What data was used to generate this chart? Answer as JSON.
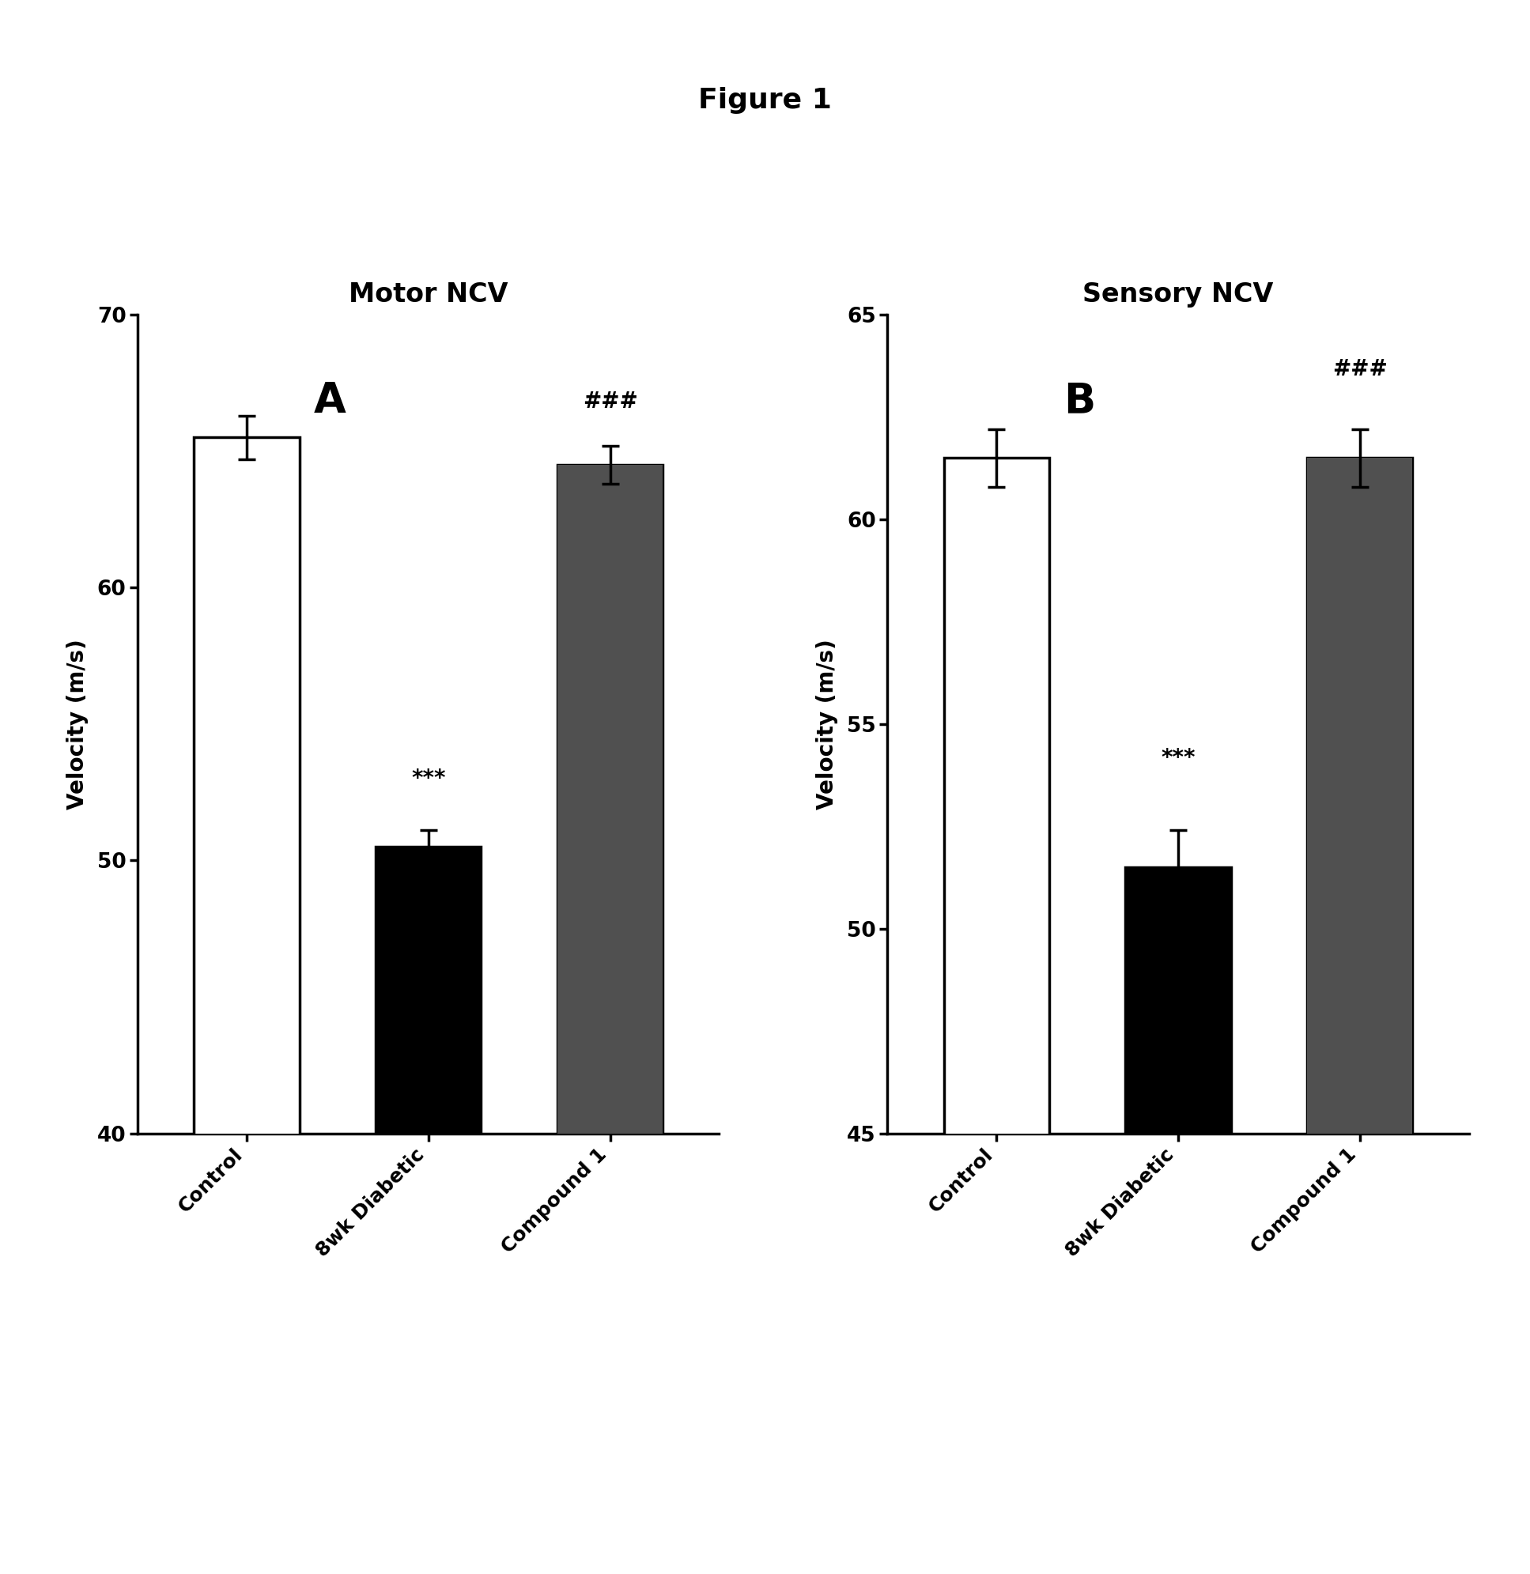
{
  "figure_title": "Figure 1",
  "panels": [
    {
      "title": "Motor NCV",
      "label": "A",
      "ylabel": "Velocity (m/s)",
      "ylim": [
        40,
        70
      ],
      "yticks": [
        40,
        50,
        60,
        70
      ],
      "categories": [
        "Control",
        "8wk Diabetic",
        "Compound 1"
      ],
      "values": [
        65.5,
        50.5,
        64.5
      ],
      "errors": [
        0.8,
        0.6,
        0.7
      ],
      "bar_colors": [
        "white",
        "black",
        "#3a3a3a"
      ],
      "bar_hatches": [
        null,
        null,
        null
      ],
      "annotations": [
        null,
        "***",
        "###"
      ],
      "ann_offsets": [
        0,
        1.5,
        1.2
      ]
    },
    {
      "title": "Sensory NCV",
      "label": "B",
      "ylabel": "Velocity (m/s)",
      "ylim": [
        45,
        65
      ],
      "yticks": [
        45,
        50,
        55,
        60,
        65
      ],
      "categories": [
        "Control",
        "8wk Diabetic",
        "Compound 1"
      ],
      "values": [
        61.5,
        51.5,
        61.5
      ],
      "errors": [
        0.7,
        0.9,
        0.7
      ],
      "bar_colors": [
        "white",
        "black",
        "#3a3a3a"
      ],
      "bar_hatches": [
        null,
        null,
        null
      ],
      "annotations": [
        null,
        "***",
        "###"
      ],
      "ann_offsets": [
        0,
        1.5,
        1.2
      ]
    }
  ],
  "background_color": "white",
  "title_fontsize": 26,
  "subplot_title_fontsize": 24,
  "label_fontsize": 38,
  "axis_label_fontsize": 20,
  "tick_fontsize": 19,
  "xtick_fontsize": 18,
  "annotation_fontsize": 20,
  "bar_width": 0.58,
  "bar_edge_color": "black",
  "bar_linewidth": 2.5,
  "axis_linewidth": 2.5,
  "error_linewidth": 2.5,
  "capsize": 8
}
